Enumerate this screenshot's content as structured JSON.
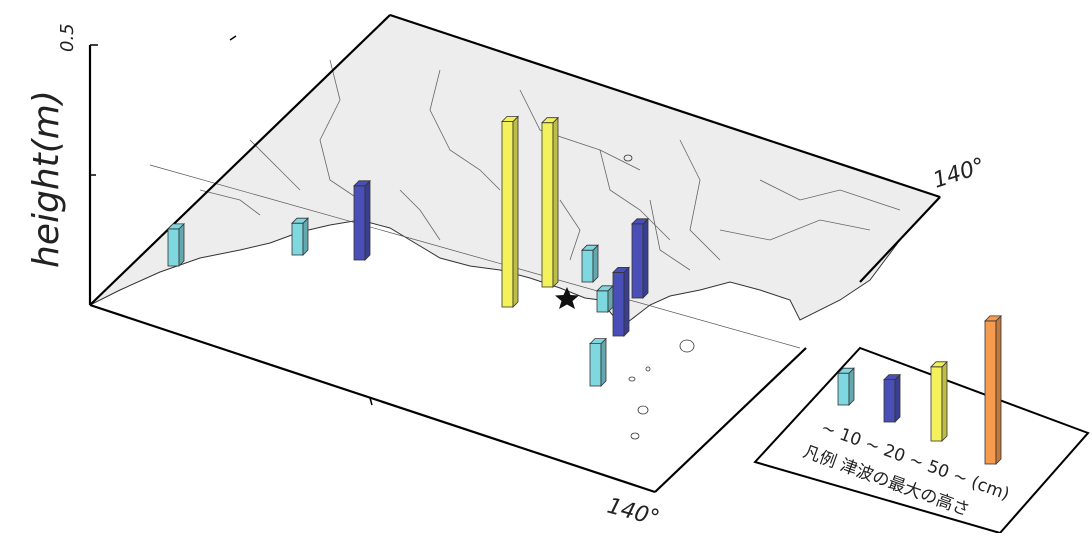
{
  "axis": {
    "label": "height(m)",
    "max_label": "0.5",
    "max_value": 0.5
  },
  "lon_labels": {
    "right_edge": "140°",
    "bottom_edge": "140°"
  },
  "legend": {
    "title": "凡例 津波の最大の高さ",
    "ranges_text": "~ 10 ~ 20 ~ 50 ~ (cm)",
    "classes": [
      {
        "name": "~10 cm",
        "color": "#7fd8e0",
        "sample_height_m": 0.06
      },
      {
        "name": "10~20 cm",
        "color": "#4a4fb8",
        "sample_height_m": 0.08
      },
      {
        "name": "20~50 cm",
        "color": "#f4f25a",
        "sample_height_m": 0.14
      },
      {
        "name": "50 cm~",
        "color": "#f59a4e",
        "sample_height_m": 0.27
      }
    ]
  },
  "stations": [
    {
      "id": "s1",
      "class": 0,
      "height_m": 0.07
    },
    {
      "id": "s2",
      "class": 0,
      "height_m": 0.06
    },
    {
      "id": "s3",
      "class": 1,
      "height_m": 0.14
    },
    {
      "id": "s4",
      "class": 2,
      "height_m": 0.35
    },
    {
      "id": "s5",
      "class": 2,
      "height_m": 0.31
    },
    {
      "id": "s6",
      "class": 0,
      "height_m": 0.06
    },
    {
      "id": "s7",
      "class": 1,
      "height_m": 0.14
    },
    {
      "id": "s8",
      "class": 0,
      "height_m": 0.04
    },
    {
      "id": "s9",
      "class": 1,
      "height_m": 0.12
    },
    {
      "id": "s10",
      "class": 0,
      "height_m": 0.08
    }
  ],
  "epicenter": {
    "symbol": "star-icon"
  }
}
